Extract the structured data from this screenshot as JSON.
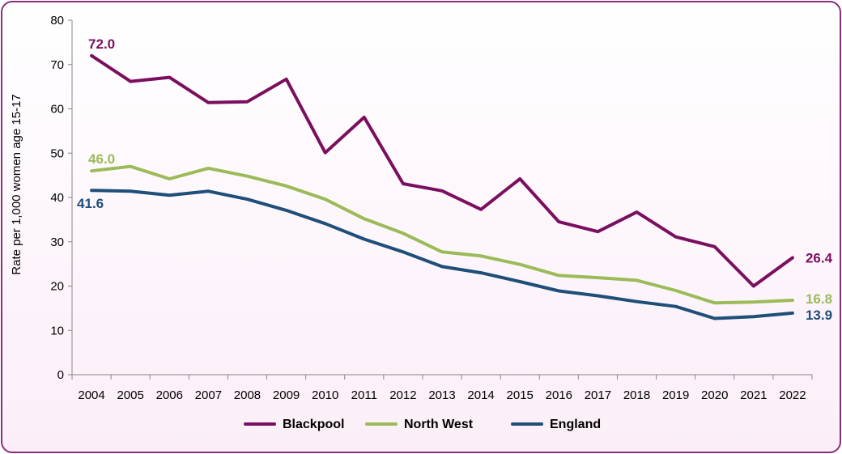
{
  "chart_data": {
    "type": "line",
    "title": "",
    "xlabel": "",
    "ylabel": "Rate per 1,000 women age 15-17",
    "ylim": [
      0,
      80
    ],
    "yticks": [
      "0",
      "10",
      "20",
      "30",
      "40",
      "50",
      "60",
      "70",
      "80"
    ],
    "categories": [
      "2004",
      "2005",
      "2006",
      "2007",
      "2008",
      "2009",
      "2010",
      "2011",
      "2012",
      "2013",
      "2014",
      "2015",
      "2016",
      "2017",
      "2018",
      "2019",
      "2020",
      "2021",
      "2022"
    ],
    "legend_position": "bottom",
    "series": [
      {
        "name": "Blackpool",
        "color": "#7b0f5f",
        "values": [
          72.0,
          66.2,
          67.1,
          61.4,
          61.6,
          66.7,
          50.1,
          58.1,
          43.1,
          41.5,
          37.3,
          44.2,
          34.5,
          32.3,
          36.7,
          31.1,
          28.9,
          20.0,
          26.4
        ],
        "labels": [
          {
            "index": 0,
            "text": "72.0"
          },
          {
            "index": 18,
            "text": "26.4"
          }
        ]
      },
      {
        "name": "North West",
        "color": "#9bbb59",
        "values": [
          46.0,
          47.0,
          44.2,
          46.6,
          44.8,
          42.6,
          39.6,
          35.2,
          31.9,
          27.7,
          26.8,
          24.9,
          22.4,
          21.9,
          21.3,
          19.0,
          16.2,
          16.4,
          16.8
        ],
        "labels": [
          {
            "index": 0,
            "text": "46.0"
          },
          {
            "index": 18,
            "text": "16.8"
          }
        ]
      },
      {
        "name": "England",
        "color": "#1f4e79",
        "values": [
          41.6,
          41.4,
          40.5,
          41.4,
          39.6,
          37.1,
          34.1,
          30.6,
          27.7,
          24.4,
          23.0,
          21.0,
          18.9,
          17.8,
          16.5,
          15.4,
          12.7,
          13.1,
          13.9
        ],
        "labels": [
          {
            "index": 0,
            "text": "41.6"
          },
          {
            "index": 18,
            "text": "13.9"
          }
        ]
      }
    ]
  }
}
